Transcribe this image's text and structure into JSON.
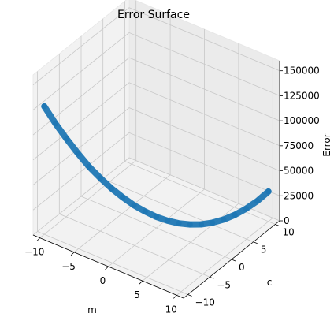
{
  "chart_data": {
    "type": "line",
    "projection": "3d",
    "title": "Error Surface",
    "xlabel": "m",
    "ylabel": "c",
    "zlabel": "Error",
    "xlim": [
      -11,
      11
    ],
    "ylim": [
      -11,
      11
    ],
    "zlim": [
      0,
      160000
    ],
    "x_ticks": [
      -10,
      -5,
      0,
      5,
      10
    ],
    "y_ticks": [
      -10,
      -5,
      0,
      5,
      10
    ],
    "z_ticks": [
      0,
      25000,
      50000,
      75000,
      100000,
      125000,
      150000
    ],
    "x_tick_labels": [
      "−10",
      "−5",
      "0",
      "5",
      "10"
    ],
    "y_tick_labels": [
      "−10",
      "−5",
      "0",
      "5",
      "10"
    ],
    "z_tick_labels": [
      "0",
      "25000",
      "50000",
      "75000",
      "100000",
      "125000",
      "150000"
    ],
    "grid": true,
    "series": [
      {
        "color": "#1f77b4",
        "x": [
          -10,
          -9,
          -8,
          -7,
          -6,
          -5,
          -4,
          -3,
          -2,
          -1,
          0,
          1,
          2,
          3,
          4,
          5,
          6,
          7,
          8,
          9,
          10
        ],
        "y": [
          -10,
          -9,
          -8,
          -7,
          -6,
          -5,
          -4,
          -3,
          -2,
          -1,
          0,
          1,
          2,
          3,
          4,
          5,
          6,
          7,
          8,
          9,
          10
        ],
        "z": [
          128000,
          110000,
          94000,
          79000,
          65000,
          53000,
          42000,
          32500,
          24000,
          17000,
          11000,
          6500,
          3300,
          1500,
          1000,
          2000,
          4500,
          8500,
          14000,
          21000,
          30000
        ]
      }
    ]
  }
}
